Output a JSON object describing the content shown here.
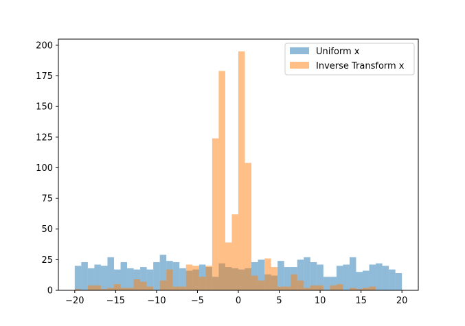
{
  "chart_data": {
    "type": "bar",
    "title": "",
    "xlabel": "",
    "ylabel": "",
    "xlim": [
      -22,
      22
    ],
    "ylim": [
      0,
      205
    ],
    "bin_start": -20,
    "bin_width": 0.8,
    "xticks": [
      -20,
      -15,
      -10,
      -5,
      0,
      5,
      10,
      15,
      20
    ],
    "yticks": [
      0,
      25,
      50,
      75,
      100,
      125,
      150,
      175,
      200
    ],
    "legend_position": "top-right",
    "series": [
      {
        "name": "Uniform x",
        "color": "#1f77b4",
        "alpha": 0.5,
        "values": [
          20,
          23,
          18,
          21,
          20,
          27,
          17,
          23,
          18,
          17,
          19,
          17,
          23,
          29,
          24,
          23,
          18,
          16,
          17,
          21,
          19,
          11,
          22,
          19,
          18,
          17,
          18,
          23,
          25,
          13,
          12,
          24,
          19,
          19,
          25,
          27,
          23,
          21,
          11,
          11,
          20,
          21,
          27,
          15,
          16,
          21,
          22,
          20,
          17,
          14
        ]
      },
      {
        "name": "Inverse Transform x",
        "color": "#ff7f0e",
        "alpha": 0.5,
        "values": [
          1,
          0,
          4,
          4,
          1,
          2,
          5,
          2,
          2,
          9,
          7,
          3,
          0,
          8,
          17,
          3,
          3,
          21,
          20,
          11,
          20,
          124,
          179,
          39,
          62,
          195,
          104,
          12,
          8,
          26,
          19,
          3,
          3,
          13,
          8,
          2,
          4,
          4,
          0,
          4,
          5,
          0,
          2,
          1,
          2,
          3
        ]
      }
    ]
  }
}
